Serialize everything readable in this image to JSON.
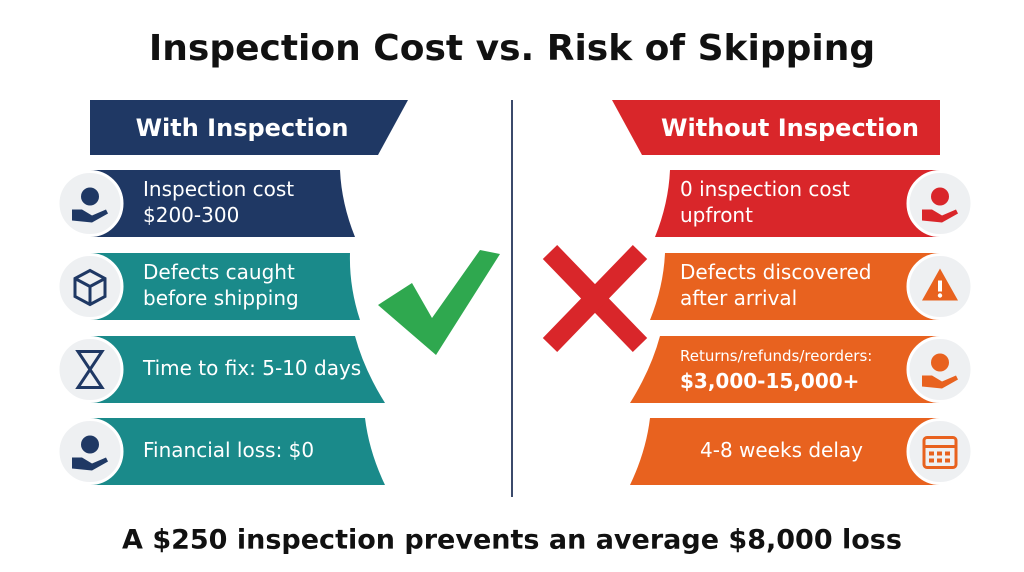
{
  "title": "Inspection Cost vs. Risk of Skipping",
  "with": {
    "heading": "With Inspection",
    "items": [
      [
        "Inspection cost",
        "$200-300"
      ],
      [
        "Defects caught",
        "before shipping"
      ],
      [
        "Time to fix: 5-10 days"
      ],
      [
        "Financial loss: $0"
      ]
    ]
  },
  "without": {
    "heading": "Without Inspection",
    "items": [
      [
        "0 inspection cost",
        "upfront"
      ],
      [
        "Defects discovered",
        "after arrival"
      ],
      [
        "Returns/refunds/reorders:",
        "$3,000-15,000+"
      ],
      [
        "4-8 weeks delay"
      ]
    ]
  },
  "footer": "A $250 inspection prevents an average $8,000 loss"
}
